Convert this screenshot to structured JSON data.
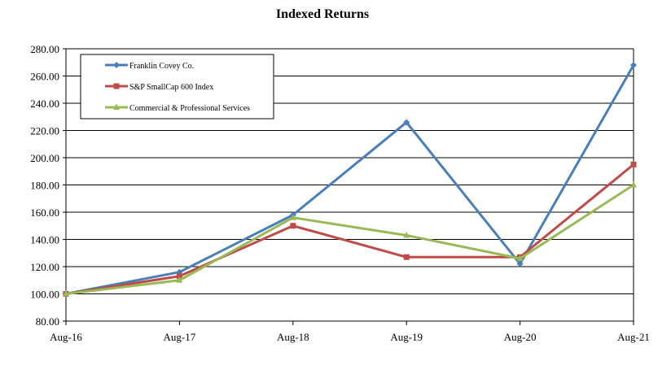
{
  "chart_data": {
    "type": "line",
    "title": "Indexed Returns",
    "xlabel": "",
    "ylabel": "",
    "categories": [
      "Aug-16",
      "Aug-17",
      "Aug-18",
      "Aug-19",
      "Aug-20",
      "Aug-21"
    ],
    "ylim": [
      80,
      280
    ],
    "yticks": [
      80,
      100,
      120,
      140,
      160,
      180,
      200,
      220,
      240,
      260,
      280
    ],
    "ytick_labels": [
      "80.00",
      "100.00",
      "120.00",
      "140.00",
      "160.00",
      "180.00",
      "200.00",
      "220.00",
      "240.00",
      "260.00",
      "280.00"
    ],
    "grid": true,
    "legend_position": "top-left",
    "series": [
      {
        "name": "Franklin Covey Co.",
        "color": "#4a7ebb",
        "marker": "diamond",
        "values": [
          100,
          116,
          158,
          226,
          122,
          268
        ]
      },
      {
        "name": "S&P SmallCap 600 Index",
        "color": "#be4b48",
        "marker": "square",
        "values": [
          100,
          113,
          150,
          127,
          127,
          195
        ]
      },
      {
        "name": "Commercial & Professional Services",
        "color": "#98b954",
        "marker": "triangle",
        "values": [
          100,
          110,
          156,
          143,
          126,
          180
        ]
      }
    ]
  }
}
